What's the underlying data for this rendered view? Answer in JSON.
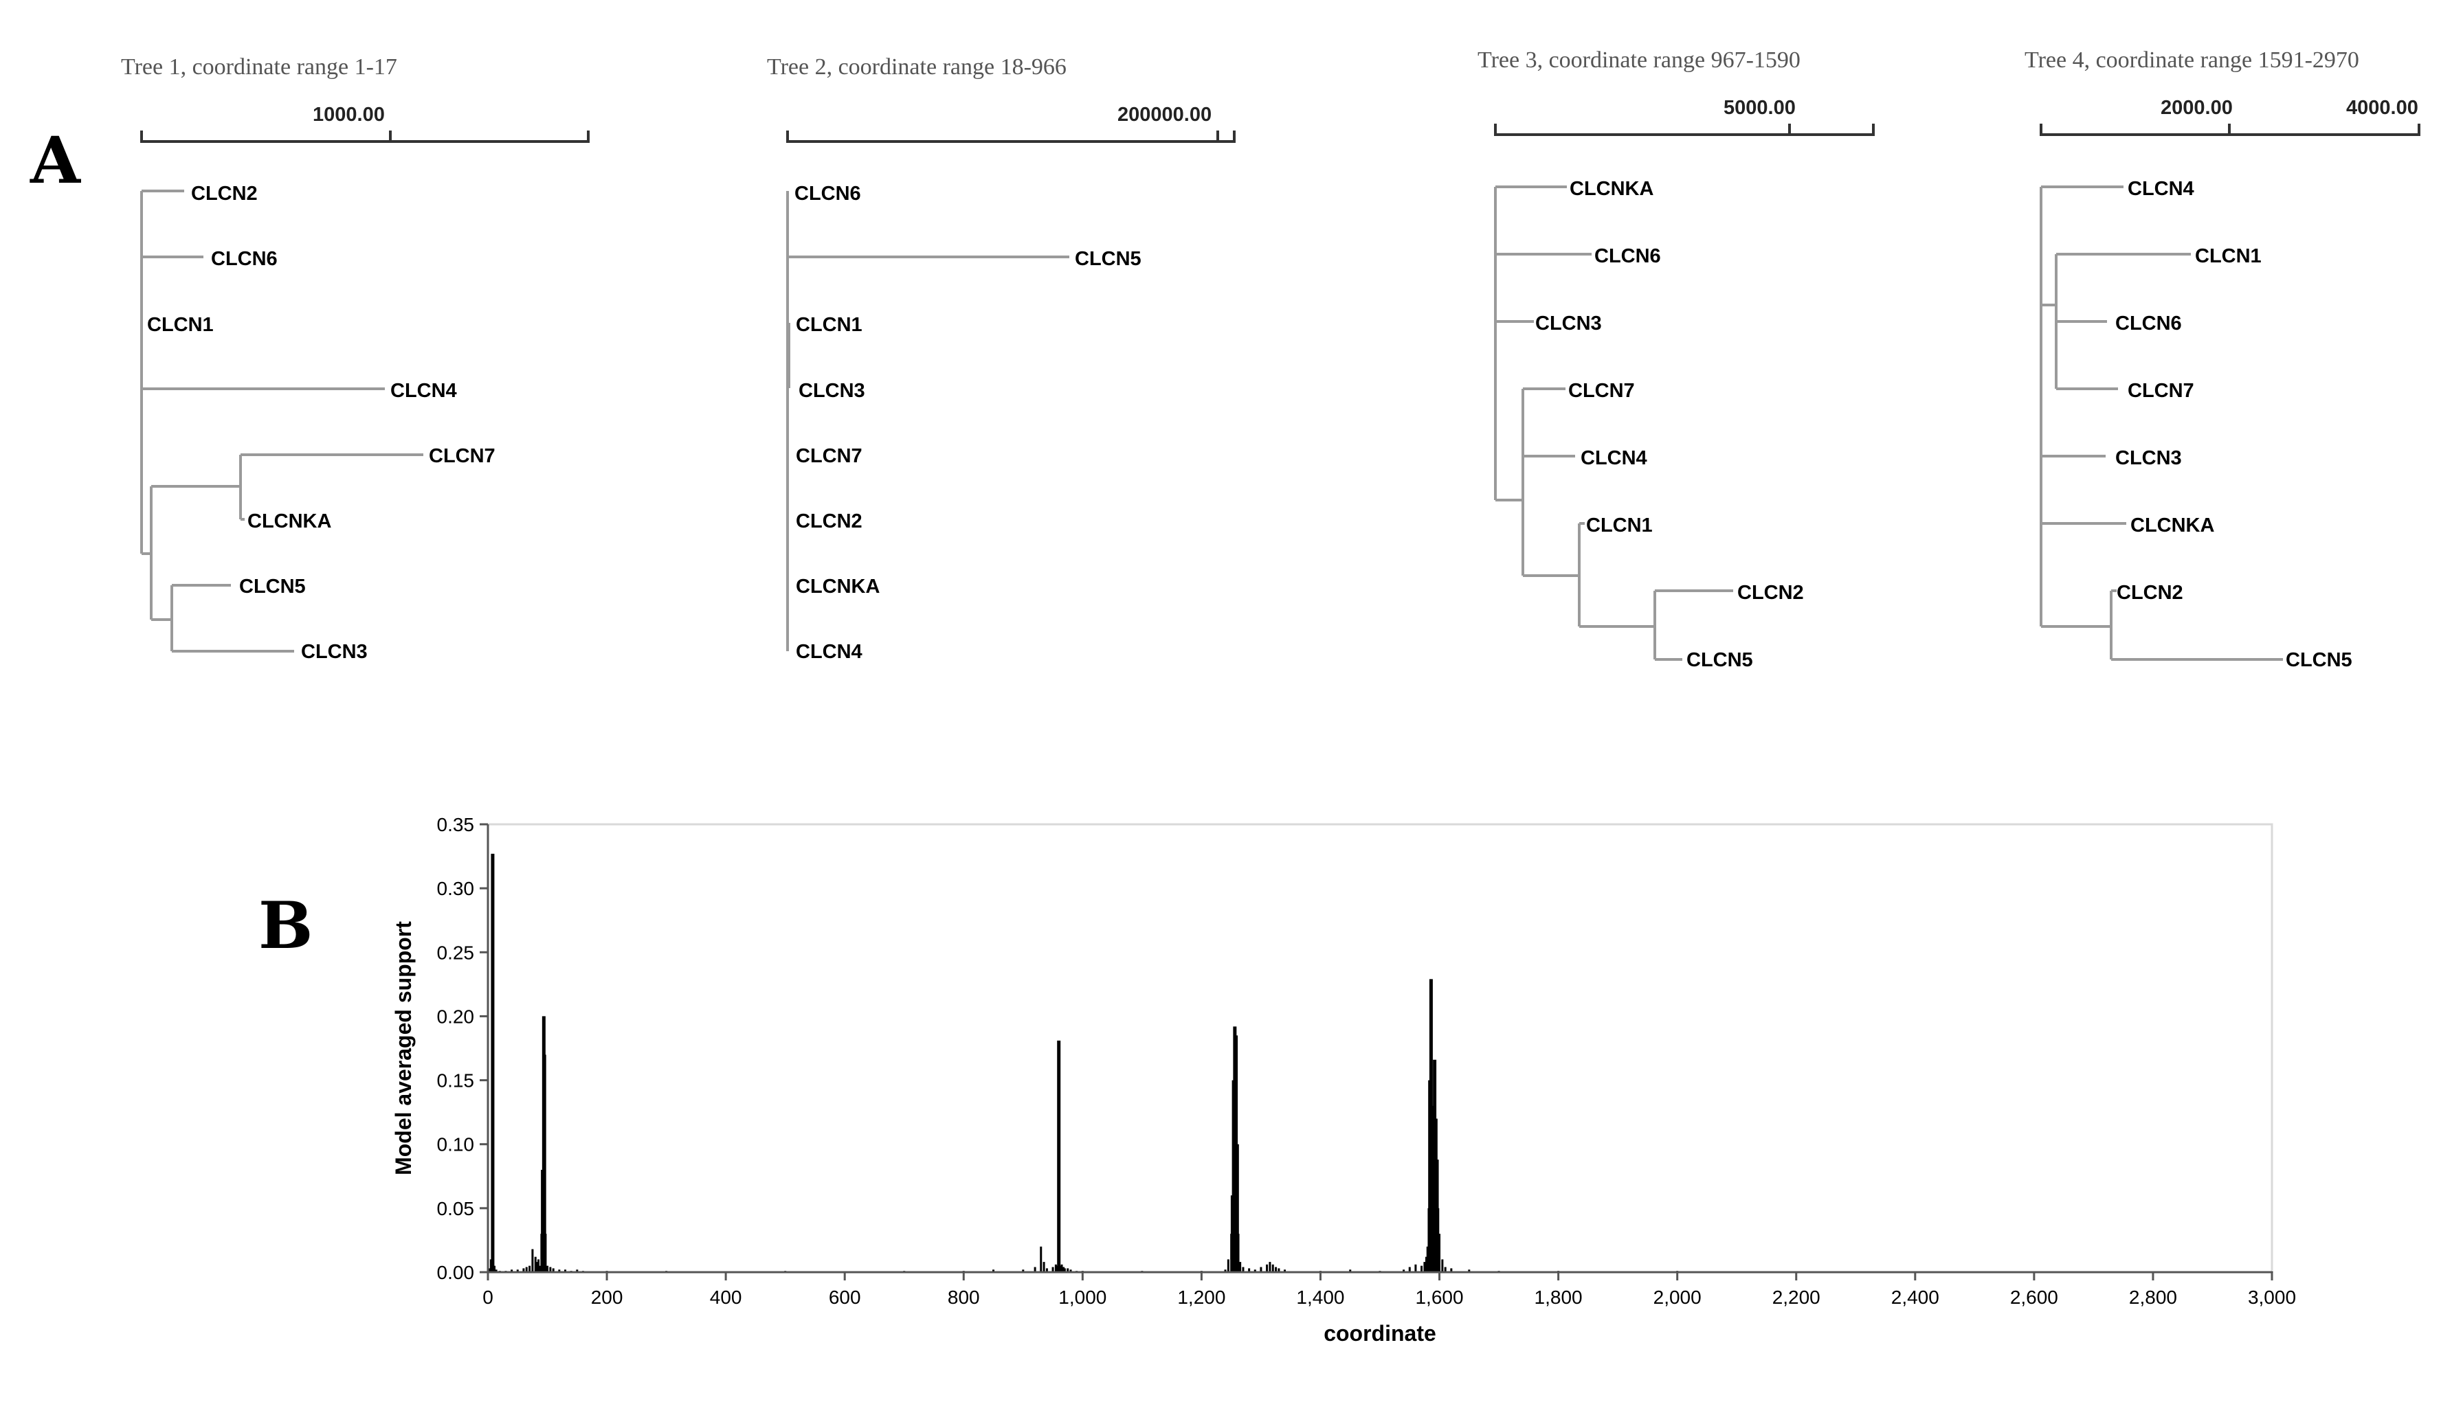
{
  "panels": {
    "a": "A",
    "b": "B"
  },
  "trees": [
    {
      "title": "Tree 1, coordinate range 1-17",
      "scale_labels": [
        "1000.00"
      ],
      "leaves": [
        "CLCN2",
        "CLCN6",
        "CLCN1",
        "CLCN4",
        "CLCN7",
        "CLCNKA",
        "CLCN5",
        "CLCN3"
      ]
    },
    {
      "title": "Tree 2, coordinate range 18-966",
      "scale_labels": [
        "200000.00"
      ],
      "leaves": [
        "CLCN6",
        "CLCN5",
        "CLCN1",
        "CLCN3",
        "CLCN7",
        "CLCN2",
        "CLCNKA",
        "CLCN4"
      ]
    },
    {
      "title": "Tree 3, coordinate range 967-1590",
      "scale_labels": [
        "5000.00"
      ],
      "leaves": [
        "CLCNKA",
        "CLCN6",
        "CLCN3",
        "CLCN7",
        "CLCN4",
        "CLCN1",
        "CLCN2",
        "CLCN5"
      ]
    },
    {
      "title": "Tree 4, coordinate range 1591-2970",
      "scale_labels": [
        "2000.00",
        "4000.00"
      ],
      "leaves": [
        "CLCN4",
        "CLCN1",
        "CLCN6",
        "CLCN7",
        "CLCN3",
        "CLCNKA",
        "CLCN2",
        "CLCN5"
      ]
    }
  ],
  "chart_data": {
    "type": "bar",
    "xlabel": "coordinate",
    "ylabel": "Model averaged support",
    "xlim": [
      0,
      3000
    ],
    "ylim": [
      0,
      0.35
    ],
    "x_ticks": [
      0,
      200,
      400,
      600,
      800,
      1000,
      1200,
      1400,
      1600,
      1800,
      2000,
      2200,
      2400,
      2600,
      2800,
      3000
    ],
    "x_tick_labels": [
      "0",
      "200",
      "400",
      "600",
      "800",
      "1,000",
      "1,200",
      "1,400",
      "1,600",
      "1,800",
      "2,000",
      "2,200",
      "2,400",
      "2,600",
      "2,800",
      "3,000"
    ],
    "y_ticks": [
      0,
      0.05,
      0.1,
      0.15,
      0.2,
      0.25,
      0.3,
      0.35
    ],
    "y_tick_labels": [
      "0.00",
      "0.05",
      "0.10",
      "0.15",
      "0.20",
      "0.25",
      "0.30",
      "0.35"
    ],
    "grid": false,
    "x": [
      2,
      5,
      8,
      11,
      14,
      20,
      30,
      40,
      50,
      60,
      65,
      70,
      75,
      80,
      82,
      85,
      88,
      90,
      92,
      94,
      95,
      97,
      100,
      105,
      110,
      120,
      130,
      140,
      150,
      160,
      200,
      300,
      500,
      700,
      800,
      850,
      900,
      920,
      930,
      935,
      940,
      950,
      955,
      958,
      960,
      962,
      965,
      968,
      970,
      975,
      980,
      990,
      1000,
      1100,
      1200,
      1240,
      1245,
      1250,
      1252,
      1254,
      1256,
      1258,
      1260,
      1262,
      1265,
      1270,
      1280,
      1290,
      1300,
      1310,
      1315,
      1320,
      1325,
      1330,
      1340,
      1400,
      1450,
      1500,
      1540,
      1550,
      1560,
      1570,
      1575,
      1578,
      1580,
      1582,
      1584,
      1586,
      1588,
      1590,
      1592,
      1594,
      1596,
      1598,
      1600,
      1605,
      1610,
      1620,
      1650,
      1700,
      1800,
      2000,
      2500,
      3000
    ],
    "values": [
      0.003,
      0.01,
      0.327,
      0.005,
      0.002,
      0.001,
      0.001,
      0.002,
      0.002,
      0.003,
      0.004,
      0.005,
      0.018,
      0.012,
      0.008,
      0.01,
      0.005,
      0.03,
      0.08,
      0.2,
      0.17,
      0.03,
      0.005,
      0.004,
      0.003,
      0.002,
      0.002,
      0.001,
      0.002,
      0.001,
      0.001,
      0.001,
      0.001,
      0.001,
      0.001,
      0.002,
      0.002,
      0.004,
      0.02,
      0.008,
      0.003,
      0.004,
      0.006,
      0.005,
      0.181,
      0.005,
      0.006,
      0.004,
      0.003,
      0.003,
      0.002,
      0.001,
      0.001,
      0.001,
      0.001,
      0.002,
      0.01,
      0.03,
      0.06,
      0.15,
      0.192,
      0.185,
      0.1,
      0.03,
      0.008,
      0.004,
      0.003,
      0.002,
      0.004,
      0.006,
      0.008,
      0.006,
      0.004,
      0.003,
      0.002,
      0.001,
      0.002,
      0.001,
      0.002,
      0.004,
      0.006,
      0.005,
      0.008,
      0.012,
      0.02,
      0.05,
      0.15,
      0.229,
      0.13,
      0.1,
      0.166,
      0.12,
      0.088,
      0.05,
      0.03,
      0.01,
      0.004,
      0.003,
      0.002,
      0.001,
      0.001,
      0.001,
      0.0005,
      0.0005
    ]
  }
}
